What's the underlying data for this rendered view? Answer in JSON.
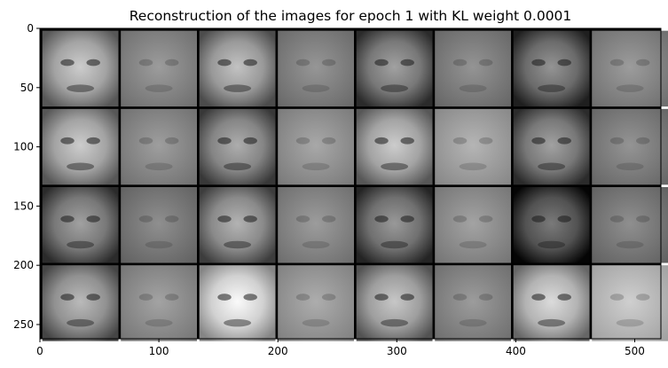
{
  "chart_data": {
    "type": "image",
    "title": "Reconstruction of the images for epoch 1 with KL weight 0.0001",
    "xlabel": "",
    "ylabel": "",
    "xlim": [
      0,
      522
    ],
    "ylim": [
      262,
      0
    ],
    "x_ticks": [
      0,
      100,
      200,
      300,
      400,
      500
    ],
    "y_ticks": [
      0,
      50,
      100,
      150,
      200,
      250
    ],
    "grid": false,
    "image_grid": {
      "rows": 4,
      "cols": 8,
      "tile_size": 64,
      "padding": 2,
      "column_pairs": [
        "original",
        "reconstruction",
        "original",
        "reconstruction",
        "original",
        "reconstruction",
        "original",
        "reconstruction"
      ],
      "tile_mean_gray": [
        [
          0.62,
          0.55,
          0.58,
          0.53,
          0.45,
          0.52,
          0.4,
          0.55
        ],
        [
          0.62,
          0.56,
          0.5,
          0.6,
          0.62,
          0.65,
          0.45,
          0.52
        ],
        [
          0.45,
          0.5,
          0.52,
          0.55,
          0.42,
          0.58,
          0.3,
          0.5
        ],
        [
          0.55,
          0.58,
          0.8,
          0.62,
          0.6,
          0.55,
          0.68,
          0.75
        ]
      ]
    },
    "colors": {
      "background": "#ffffff",
      "separator": "#000000",
      "axes": "#000000"
    }
  }
}
